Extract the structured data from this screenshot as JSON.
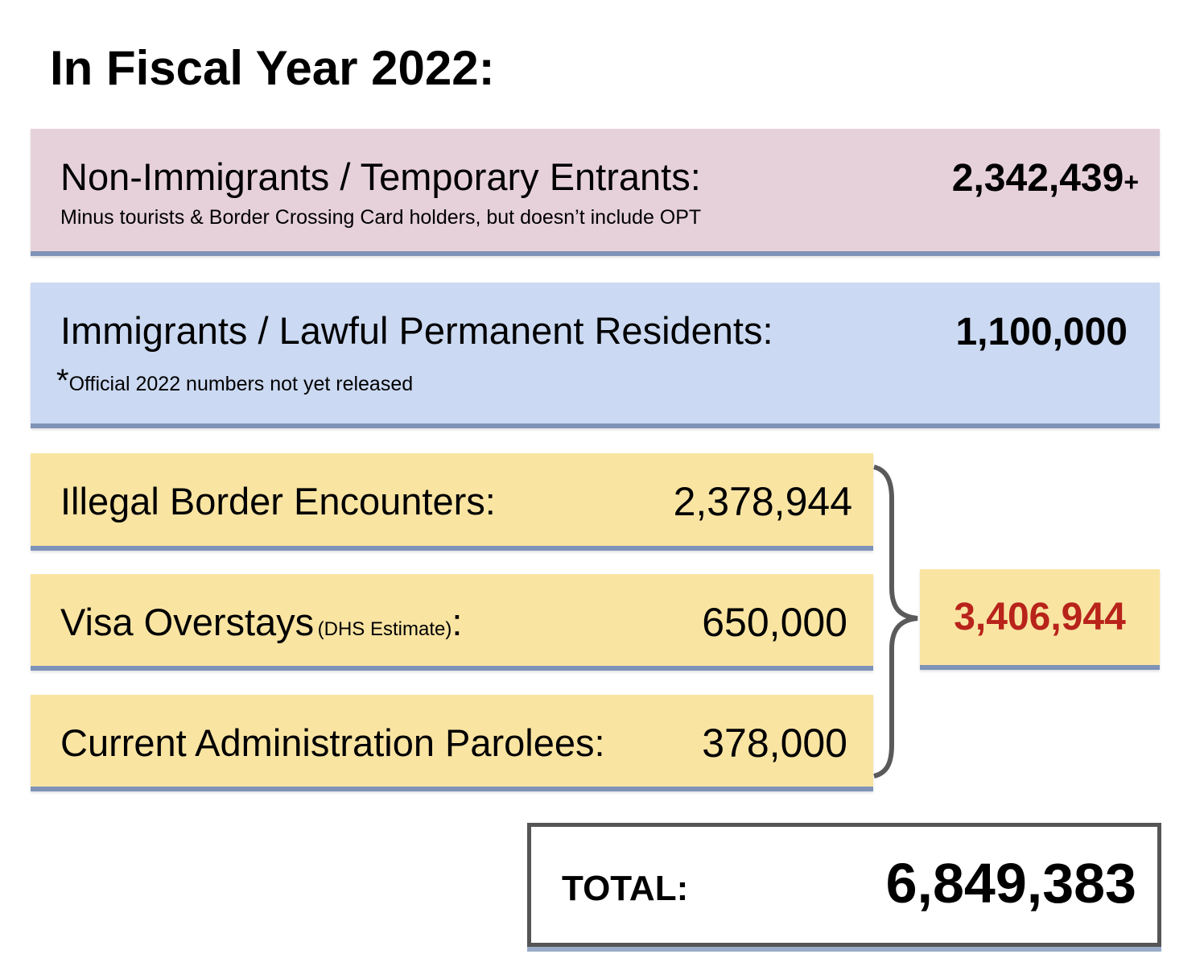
{
  "title": "In Fiscal Year 2022:",
  "non_immigrants": {
    "label": "Non-Immigrants / Temporary Entrants:",
    "note": "Minus tourists & Border Crossing Card holders, but doesn’t include OPT",
    "value": "2,342,439",
    "suffix": "+"
  },
  "immigrants": {
    "label": "Immigrants / Lawful Permanent Residents:",
    "asterisk": "*",
    "note": "Official 2022 numbers not yet released",
    "value": "1,100,000"
  },
  "illegal": [
    {
      "label": "Illegal Border Encounters:",
      "value": "2,378,944"
    },
    {
      "label": "Visa Overstays",
      "sublabel": "(DHS Estimate)",
      "colon": ":",
      "value": "650,000"
    },
    {
      "label": "Current Administration Parolees:",
      "value": "378,000"
    }
  ],
  "illegal_subtotal": "3,406,944",
  "total": {
    "label": "TOTAL:",
    "value": "6,849,383"
  },
  "colors": {
    "pink": "#e6d1da",
    "blue": "#cbd9f2",
    "yellow": "#f9e4a2",
    "accent_red": "#b8231a",
    "shadow": "#7f93b8",
    "border": "#555555"
  }
}
